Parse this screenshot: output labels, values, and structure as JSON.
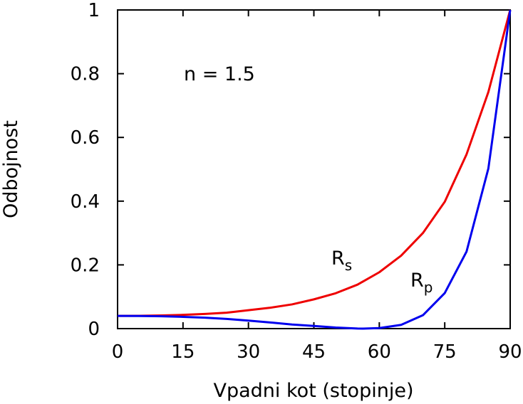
{
  "chart_data": {
    "type": "line",
    "xlabel": "Vpadni kot (stopinje)",
    "ylabel": "Odbojnost",
    "xlim": [
      0,
      90
    ],
    "ylim": [
      0,
      1
    ],
    "xticks": [
      0,
      15,
      30,
      45,
      60,
      75,
      90
    ],
    "yticks": [
      0,
      0.2,
      0.4,
      0.6,
      0.8,
      1
    ],
    "x_tick_labels": [
      "0",
      "15",
      "30",
      "45",
      "60",
      "75",
      "90"
    ],
    "y_tick_labels": [
      "0",
      "0.2",
      "0.4",
      "0.6",
      "0.8",
      "1"
    ],
    "grid": false,
    "annotations": {
      "n_label": "n = 1.5",
      "rs_main": "R",
      "rs_sub": "s",
      "rp_main": "R",
      "rp_sub": "p"
    },
    "series": [
      {
        "color": "#ee0000",
        "x": [
          0,
          5,
          10,
          15,
          20,
          25,
          30,
          35,
          40,
          45,
          50,
          55,
          60,
          65,
          70,
          75,
          80,
          85,
          90
        ],
        "y": [
          0.04,
          0.0402,
          0.0413,
          0.0432,
          0.046,
          0.05,
          0.0577,
          0.0655,
          0.076,
          0.0918,
          0.111,
          0.138,
          0.1769,
          0.229,
          0.3,
          0.398,
          0.547,
          0.7425,
          1.0
        ]
      },
      {
        "color": "#0000ee",
        "x": [
          0,
          5,
          10,
          15,
          20,
          25,
          30,
          35,
          40,
          45,
          50,
          55,
          56.3,
          60,
          65,
          70,
          75,
          80,
          85,
          90
        ],
        "y": [
          0.04,
          0.0397,
          0.0387,
          0.0369,
          0.0343,
          0.0304,
          0.0252,
          0.0193,
          0.0129,
          0.0084,
          0.0034,
          0.0002,
          0.0,
          0.0017,
          0.0118,
          0.0421,
          0.1114,
          0.2418,
          0.5024,
          1.0
        ]
      }
    ]
  }
}
